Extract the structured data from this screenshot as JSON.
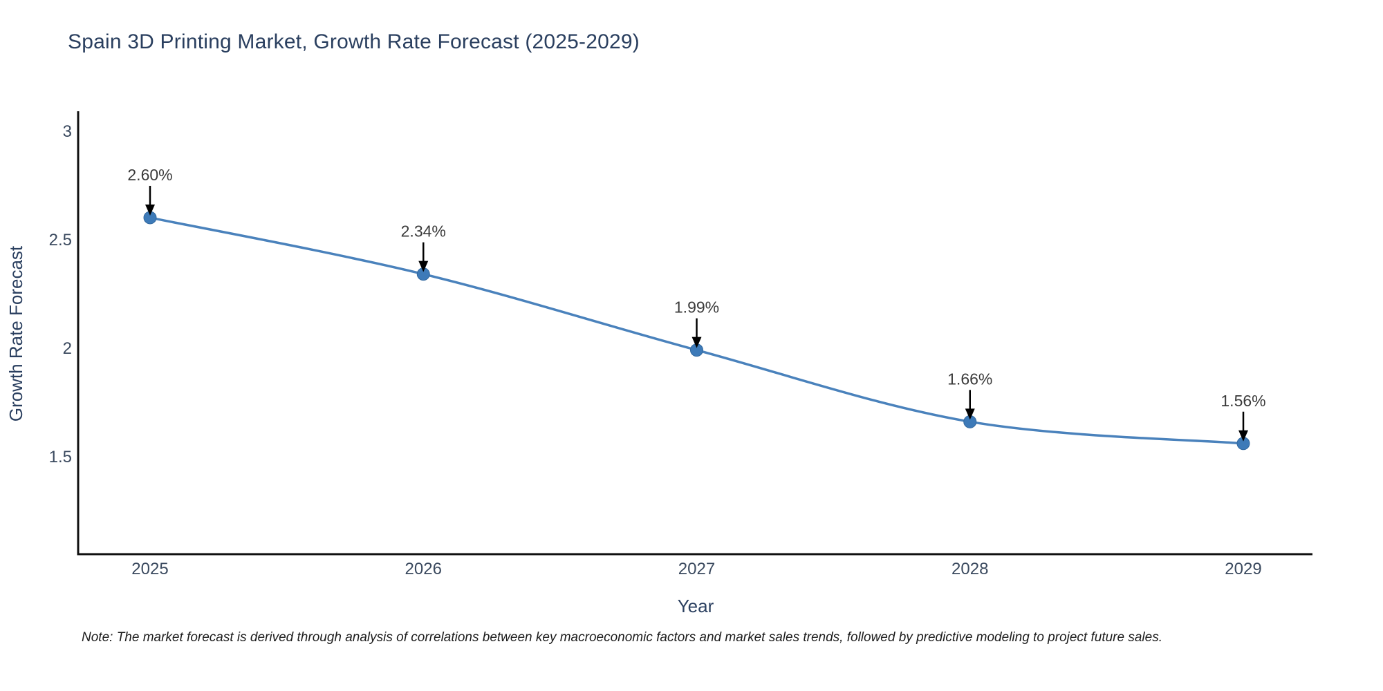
{
  "chart_data": {
    "type": "line",
    "title": "Spain 3D Printing Market, Growth Rate Forecast (2025-2029)",
    "xlabel": "Year",
    "ylabel": "Growth Rate Forecast",
    "categories": [
      "2025",
      "2026",
      "2027",
      "2028",
      "2029"
    ],
    "series": [
      {
        "name": "Growth Rate Forecast",
        "values": [
          2.6,
          2.34,
          1.99,
          1.66,
          1.56
        ]
      }
    ],
    "point_labels": [
      "2.60%",
      "2.34%",
      "1.99%",
      "1.66%",
      "1.56%"
    ],
    "yticks": [
      3,
      2.5,
      2,
      1.5
    ],
    "ylim": [
      1.05,
      3.09
    ],
    "grid": false,
    "legend_position": "none",
    "smooth": true,
    "line_color": "#4a82bc",
    "marker_color": "#3d7ab8",
    "marker_edge_color": "#32689e",
    "arrow_color": "#000000"
  },
  "note": "Note: The market forecast is derived through analysis of correlations between key macroeconomic factors and market sales trends, followed by predictive modeling to project future sales.",
  "colors": {
    "background": "#ffffff",
    "title_text": "#2a3f5f",
    "tick_text": "#3b4a5f",
    "axis_line": "#101010",
    "annotation_text": "#3a3a3a"
  }
}
